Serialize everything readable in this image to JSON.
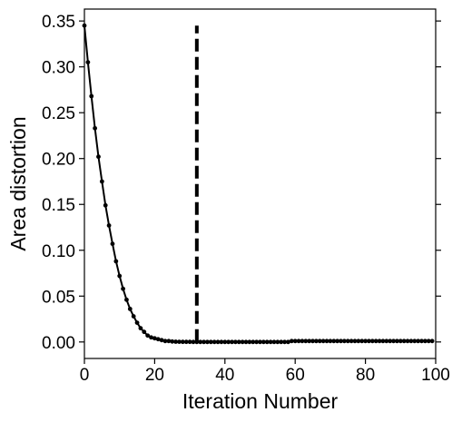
{
  "chart_data": {
    "type": "line",
    "title": "",
    "xlabel": "Iteration Number",
    "ylabel": "Area distortion",
    "xlim": [
      0,
      100
    ],
    "ylim": [
      -0.018,
      0.363
    ],
    "xticks": [
      0,
      20,
      40,
      60,
      80,
      100
    ],
    "yticks": [
      0.0,
      0.05,
      0.1,
      0.15,
      0.2,
      0.25,
      0.3,
      0.35
    ],
    "ytick_decimals": 2,
    "grid": false,
    "legend": "none",
    "series": [
      {
        "color": "#000000",
        "marker": "circle",
        "x": [
          0,
          1,
          2,
          3,
          4,
          5,
          6,
          7,
          8,
          9,
          10,
          11,
          12,
          13,
          14,
          15,
          16,
          17,
          18,
          19,
          20,
          21,
          22,
          23,
          24,
          25,
          26,
          27,
          28,
          29,
          30,
          31,
          32,
          33,
          34,
          35,
          36,
          37,
          38,
          39,
          40,
          41,
          42,
          43,
          44,
          45,
          46,
          47,
          48,
          49,
          50,
          51,
          52,
          53,
          54,
          55,
          56,
          57,
          58,
          59,
          60,
          61,
          62,
          63,
          64,
          65,
          66,
          67,
          68,
          69,
          70,
          71,
          72,
          73,
          74,
          75,
          76,
          77,
          78,
          79,
          80,
          81,
          82,
          83,
          84,
          85,
          86,
          87,
          88,
          89,
          90,
          91,
          92,
          93,
          94,
          95,
          96,
          97,
          98,
          99
        ],
        "y": [
          0.345,
          0.305,
          0.268,
          0.233,
          0.202,
          0.175,
          0.149,
          0.127,
          0.107,
          0.088,
          0.072,
          0.058,
          0.046,
          0.036,
          0.028,
          0.021,
          0.015,
          0.011,
          0.007,
          0.005,
          0.004,
          0.003,
          0.002,
          0.001,
          0.001,
          0.0005,
          0.0003,
          0.0002,
          0.0001,
          0.0001,
          0.0001,
          0.0,
          0.0,
          0.0,
          0.0,
          0.0,
          0.0,
          0.0,
          0.0,
          0.0,
          0.0,
          0.0,
          0.0,
          0.0,
          0.0,
          0.0,
          0.0,
          0.0,
          0.0,
          0.0,
          0.0,
          0.0,
          0.0,
          0.0,
          0.0,
          0.0,
          0.0,
          0.0,
          0.0,
          0.001,
          0.001,
          0.001,
          0.001,
          0.001,
          0.001,
          0.001,
          0.001,
          0.001,
          0.001,
          0.001,
          0.001,
          0.001,
          0.001,
          0.001,
          0.001,
          0.001,
          0.001,
          0.001,
          0.001,
          0.001,
          0.001,
          0.001,
          0.001,
          0.001,
          0.001,
          0.001,
          0.001,
          0.001,
          0.001,
          0.001,
          0.001,
          0.001,
          0.001,
          0.001,
          0.001,
          0.001,
          0.001,
          0.001,
          0.001,
          0.001
        ]
      }
    ],
    "vline": {
      "x": 32,
      "y_from": 0.0,
      "y_to": 0.345,
      "style": "dashed",
      "color": "#000000"
    }
  }
}
